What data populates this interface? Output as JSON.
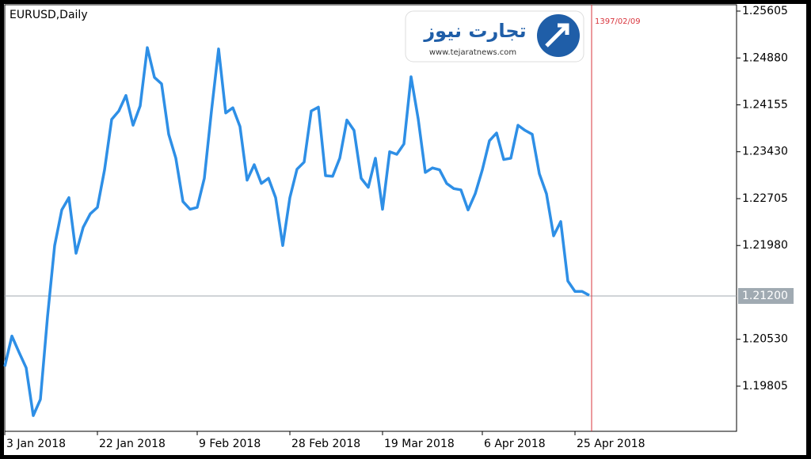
{
  "chart_data": {
    "type": "line",
    "title": "EURUSD,Daily",
    "categories": [
      "3 Jan 2018",
      null,
      null,
      null,
      null,
      null,
      null,
      null,
      null,
      null,
      null,
      null,
      null,
      "22 Jan 2018",
      null,
      null,
      null,
      null,
      null,
      null,
      null,
      null,
      null,
      null,
      null,
      null,
      null,
      "9 Feb 2018",
      null,
      null,
      null,
      null,
      null,
      null,
      null,
      null,
      null,
      null,
      null,
      null,
      "28 Feb 2018",
      null,
      null,
      null,
      null,
      null,
      null,
      null,
      null,
      null,
      null,
      null,
      null,
      "19 Mar 2018",
      null,
      null,
      null,
      null,
      null,
      null,
      null,
      null,
      null,
      null,
      null,
      null,
      null,
      "6 Apr 2018",
      null,
      null,
      null,
      null,
      null,
      null,
      null,
      null,
      null,
      null,
      null,
      null,
      "25 Apr 2018",
      null,
      null
    ],
    "series": [
      {
        "name": "EURUSD",
        "color": "#2e8fe6",
        "values": [
          1.2011,
          1.2058,
          1.2033,
          1.2009,
          1.1935,
          1.196,
          1.2088,
          1.2198,
          1.2253,
          1.2272,
          1.2186,
          1.2226,
          1.2247,
          1.2257,
          1.2315,
          1.2393,
          1.2406,
          1.243,
          1.2384,
          1.2414,
          1.2504,
          1.2458,
          1.2448,
          1.237,
          1.2333,
          1.2266,
          1.2254,
          1.2257,
          1.2302,
          1.2406,
          1.2502,
          1.2403,
          1.2411,
          1.2382,
          1.2299,
          1.2323,
          1.2294,
          1.2302,
          1.2272,
          1.2198,
          1.2272,
          1.2316,
          1.2327,
          1.2406,
          1.2412,
          1.2306,
          1.2305,
          1.2333,
          1.2392,
          1.2376,
          1.2302,
          1.2288,
          1.2333,
          1.2254,
          1.2343,
          1.2339,
          1.2355,
          1.2459,
          1.2394,
          1.2311,
          1.2318,
          1.2315,
          1.2294,
          1.2286,
          1.2284,
          1.2253,
          1.2278,
          1.2315,
          1.236,
          1.2372,
          1.2331,
          1.2333,
          1.2384,
          1.2376,
          1.237,
          1.2309,
          1.2278,
          1.2213,
          1.2235,
          1.2143,
          1.2127,
          1.2127,
          1.2121
        ]
      }
    ],
    "ylim": [
      1.19107,
      1.25703
    ],
    "yticks": [
      1.25605,
      {
        "value": 1.2488,
        "label": "1.24880"
      },
      1.24155,
      {
        "value": 1.2343,
        "label": "1.23430"
      },
      1.22705,
      {
        "value": 1.2198,
        "label": "1.21980"
      },
      {
        "value": 1.2053,
        "label": "1.20530"
      },
      1.19805
    ],
    "price_line": {
      "value": 1.212,
      "label": "1.21200",
      "color": "#a0aab2"
    },
    "marker": {
      "label": "1397/02/09",
      "color": "#d9363e"
    },
    "logo": {
      "title": "تجارت نیوز",
      "url": "www.tejaratnews.com"
    }
  }
}
